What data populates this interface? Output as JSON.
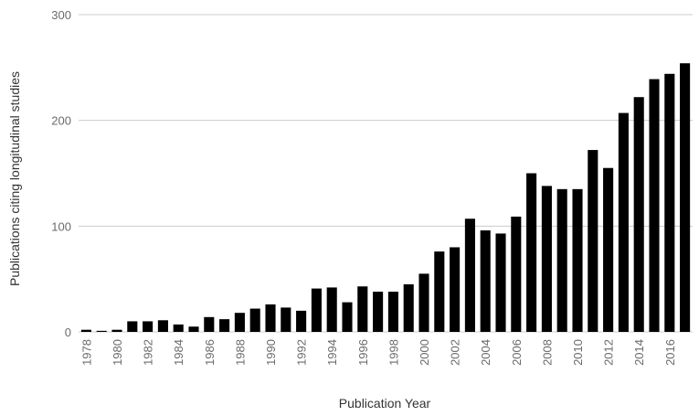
{
  "chart_data": {
    "type": "bar",
    "xlabel": "Publication Year",
    "ylabel": "Publications citing longitudinal studies",
    "ylim": [
      0,
      300
    ],
    "yticks": [
      "0",
      "100",
      "200",
      "300"
    ],
    "grid": true,
    "categories": [
      "1978",
      "1979",
      "1980",
      "1981",
      "1982",
      "1983",
      "1984",
      "1985",
      "1986",
      "1987",
      "1988",
      "1989",
      "1990",
      "1991",
      "1992",
      "1993",
      "1994",
      "1995",
      "1996",
      "1997",
      "1998",
      "1999",
      "2000",
      "2001",
      "2002",
      "2003",
      "2004",
      "2005",
      "2006",
      "2007",
      "2008",
      "2009",
      "2010",
      "2011",
      "2012",
      "2013",
      "2014",
      "2015",
      "2016",
      "2017"
    ],
    "tick_labels": [
      "1978",
      "",
      "1980",
      "",
      "1982",
      "",
      "1984",
      "",
      "1986",
      "",
      "1988",
      "",
      "1990",
      "",
      "1992",
      "",
      "1994",
      "",
      "1996",
      "",
      "1998",
      "",
      "2000",
      "",
      "2002",
      "",
      "2004",
      "",
      "2006",
      "",
      "2008",
      "",
      "2010",
      "",
      "2012",
      "",
      "2014",
      "",
      "2016",
      ""
    ],
    "values": [
      2,
      1,
      2,
      10,
      10,
      11,
      7,
      5,
      14,
      12,
      18,
      22,
      26,
      23,
      20,
      41,
      42,
      28,
      43,
      38,
      38,
      45,
      55,
      76,
      80,
      107,
      96,
      93,
      109,
      150,
      138,
      135,
      135,
      172,
      155,
      207,
      222,
      239,
      244,
      254
    ],
    "colors": {
      "bar": "#000000",
      "grid": "#cccccc",
      "tick_text": "#6b6b6b",
      "title_text": "#333333"
    }
  }
}
